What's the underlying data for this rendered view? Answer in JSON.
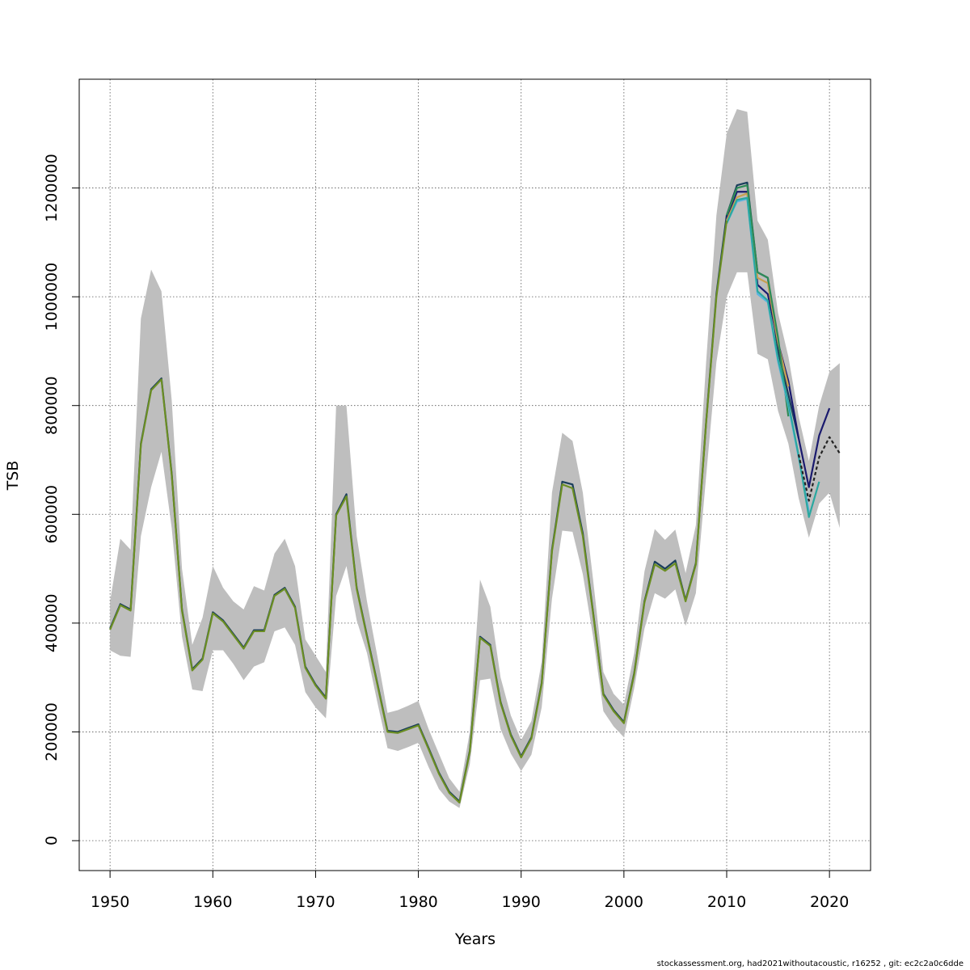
{
  "footer": "stockassessment.org, had2021withoutacoustic, r16252 , git: ec2c2a0c6dde",
  "chart_data": {
    "type": "line",
    "title": "",
    "xlabel": "Years",
    "ylabel": "TSB",
    "xlim": [
      1947,
      2024
    ],
    "ylim": [
      -55000,
      1400000
    ],
    "x_ticks": [
      1950,
      1960,
      1970,
      1980,
      1990,
      2000,
      2010,
      2020
    ],
    "y_ticks": [
      0,
      200000,
      400000,
      600000,
      800000,
      1000000,
      1200000
    ],
    "grid": true,
    "colors": {
      "band": "#bebebe",
      "main": "#6b8e23",
      "main_dark": "#1a3e5c",
      "retro_1": "#1a1a6e",
      "retro_2": "#c8a050",
      "retro_3": "#2aa8a0",
      "retro_4": "#2e8b57",
      "retro_5": "#5ab4e0",
      "current_dashed": "#222222"
    },
    "band": {
      "x": [
        1950,
        1951,
        1952,
        1953,
        1954,
        1955,
        1956,
        1957,
        1958,
        1959,
        1960,
        1961,
        1962,
        1963,
        1964,
        1965,
        1966,
        1967,
        1968,
        1969,
        1970,
        1971,
        1972,
        1973,
        1974,
        1975,
        1976,
        1977,
        1978,
        1979,
        1980,
        1981,
        1982,
        1983,
        1984,
        1985,
        1986,
        1987,
        1988,
        1989,
        1990,
        1991,
        1992,
        1993,
        1994,
        1995,
        1996,
        1997,
        1998,
        1999,
        2000,
        2001,
        2002,
        2003,
        2004,
        2005,
        2006,
        2007,
        2008,
        2009,
        2010,
        2011,
        2012,
        2013,
        2014,
        2015,
        2016,
        2017,
        2018,
        2019,
        2020,
        2021
      ],
      "upper": [
        440000,
        555000,
        535000,
        960000,
        1050000,
        1010000,
        810000,
        500000,
        360000,
        410000,
        505000,
        465000,
        440000,
        425000,
        468000,
        460000,
        528000,
        555000,
        505000,
        370000,
        340000,
        310000,
        800000,
        800000,
        560000,
        440000,
        340000,
        235000,
        240000,
        248000,
        257000,
        205000,
        160000,
        115000,
        90000,
        200000,
        480000,
        430000,
        300000,
        230000,
        185000,
        220000,
        330000,
        640000,
        750000,
        735000,
        640000,
        480000,
        310000,
        270000,
        250000,
        345000,
        495000,
        573000,
        553000,
        572000,
        492000,
        580000,
        880000,
        1150000,
        1300000,
        1345000,
        1340000,
        1140000,
        1105000,
        970000,
        890000,
        780000,
        698000,
        800000,
        862000,
        878000
      ],
      "lower": [
        350000,
        340000,
        338000,
        560000,
        650000,
        715000,
        575000,
        375000,
        278000,
        275000,
        350000,
        350000,
        325000,
        295000,
        320000,
        328000,
        385000,
        392000,
        360000,
        273000,
        245000,
        225000,
        450000,
        505000,
        405000,
        345000,
        255000,
        170000,
        165000,
        172000,
        180000,
        135000,
        95000,
        72000,
        60000,
        140000,
        295000,
        298000,
        205000,
        160000,
        128000,
        158000,
        245000,
        445000,
        570000,
        568000,
        490000,
        375000,
        238000,
        210000,
        190000,
        280000,
        390000,
        455000,
        445000,
        462000,
        395000,
        455000,
        670000,
        880000,
        1000000,
        1045000,
        1045000,
        895000,
        885000,
        790000,
        730000,
        630000,
        557000,
        620000,
        640000,
        575000
      ]
    },
    "series": [
      {
        "colorKey": "main_dark",
        "x": [
          1950,
          1951,
          1952,
          1953,
          1954,
          1955,
          1956,
          1957,
          1958,
          1959,
          1960,
          1961,
          1962,
          1963,
          1964,
          1965,
          1966,
          1967,
          1968,
          1969,
          1970,
          1971,
          1972,
          1973,
          1974,
          1975,
          1976,
          1977,
          1978,
          1979,
          1980,
          1981,
          1982,
          1983,
          1984,
          1985,
          1986,
          1987,
          1988,
          1989,
          1990,
          1991,
          1992,
          1993,
          1994,
          1995,
          1996,
          1997,
          1998,
          1999,
          2000,
          2001,
          2002,
          2003,
          2004,
          2005,
          2006,
          2007,
          2008,
          2009,
          2010,
          2011,
          2012,
          2013,
          2014,
          2015,
          2016,
          2017
        ],
        "values": [
          390000,
          435000,
          425000,
          730000,
          830000,
          850000,
          675000,
          425000,
          315000,
          335000,
          420000,
          405000,
          380000,
          355000,
          387000,
          387000,
          452000,
          465000,
          430000,
          320000,
          287000,
          263000,
          600000,
          637000,
          465000,
          377000,
          290000,
          202000,
          200000,
          207000,
          214000,
          170000,
          125000,
          90000,
          72000,
          165000,
          375000,
          360000,
          255000,
          195000,
          155000,
          190000,
          290000,
          535000,
          660000,
          655000,
          565000,
          420000,
          270000,
          240000,
          218000,
          308000,
          440000,
          513000,
          500000,
          515000,
          442000,
          510000,
          770000,
          1005000,
          1150000,
          1205000,
          1210000,
          1045000,
          1035000,
          900000,
          820000,
          740000
        ]
      },
      {
        "colorKey": "retro_1",
        "x": [
          2010,
          2011,
          2012,
          2013,
          2014,
          2015,
          2016,
          2017,
          2018,
          2019,
          2020
        ],
        "values": [
          1145000,
          1193000,
          1193000,
          1022000,
          1005000,
          915000,
          845000,
          740000,
          650000,
          745000,
          795000
        ]
      },
      {
        "colorKey": "retro_2",
        "x": [
          2010,
          2011,
          2012,
          2013,
          2014,
          2015,
          2016
        ],
        "values": [
          1140000,
          1183000,
          1190000,
          1035000,
          1025000,
          915000,
          835000
        ]
      },
      {
        "colorKey": "retro_4",
        "x": [
          2010,
          2011,
          2012,
          2013,
          2014,
          2015,
          2016
        ],
        "values": [
          1150000,
          1200000,
          1205000,
          1045000,
          1035000,
          925000,
          780000
        ]
      },
      {
        "colorKey": "retro_5",
        "x": [
          2010,
          2011,
          2012,
          2013,
          2014,
          2015,
          2016,
          2017,
          2018
        ],
        "values": [
          1135000,
          1175000,
          1180000,
          1005000,
          990000,
          880000,
          800000,
          705000,
          605000
        ]
      },
      {
        "colorKey": "retro_3",
        "x": [
          2010,
          2011,
          2012,
          2013,
          2014,
          2015,
          2016,
          2017,
          2018,
          2019
        ],
        "values": [
          1135000,
          1178000,
          1182000,
          1010000,
          993000,
          885000,
          805000,
          708000,
          595000,
          660000
        ]
      },
      {
        "colorKey": "current_dashed",
        "dashed": true,
        "x": [
          2017,
          2018,
          2019,
          2020,
          2021
        ],
        "values": [
          710000,
          625000,
          705000,
          742000,
          712000
        ]
      },
      {
        "colorKey": "main",
        "x": [
          1950,
          1951,
          1952,
          1953,
          1954,
          1955,
          1956,
          1957,
          1958,
          1959,
          1960,
          1961,
          1962,
          1963,
          1964,
          1965,
          1966,
          1967,
          1968,
          1969,
          1970,
          1971,
          1972,
          1973,
          1974,
          1975,
          1976,
          1977,
          1978,
          1979,
          1980,
          1981,
          1982,
          1983,
          1984,
          1985,
          1986,
          1987,
          1988,
          1989,
          1990,
          1991,
          1992,
          1993,
          1994,
          1995,
          1996,
          1997,
          1998,
          1999,
          2000,
          2001,
          2002,
          2003,
          2004,
          2005,
          2006,
          2007,
          2008,
          2009,
          2010
        ],
        "values": [
          388000,
          433000,
          423000,
          728000,
          828000,
          848000,
          673000,
          423000,
          313000,
          333000,
          418000,
          403000,
          378000,
          353000,
          385000,
          385000,
          450000,
          463000,
          428000,
          318000,
          285000,
          261000,
          598000,
          633000,
          463000,
          375000,
          288000,
          200000,
          198000,
          205000,
          212000,
          168000,
          123000,
          88000,
          70000,
          163000,
          373000,
          358000,
          253000,
          193000,
          153000,
          188000,
          288000,
          532000,
          655000,
          648000,
          560000,
          418000,
          268000,
          238000,
          216000,
          306000,
          438000,
          508000,
          496000,
          510000,
          440000,
          508000,
          768000,
          1000000,
          1140000
        ]
      }
    ]
  }
}
